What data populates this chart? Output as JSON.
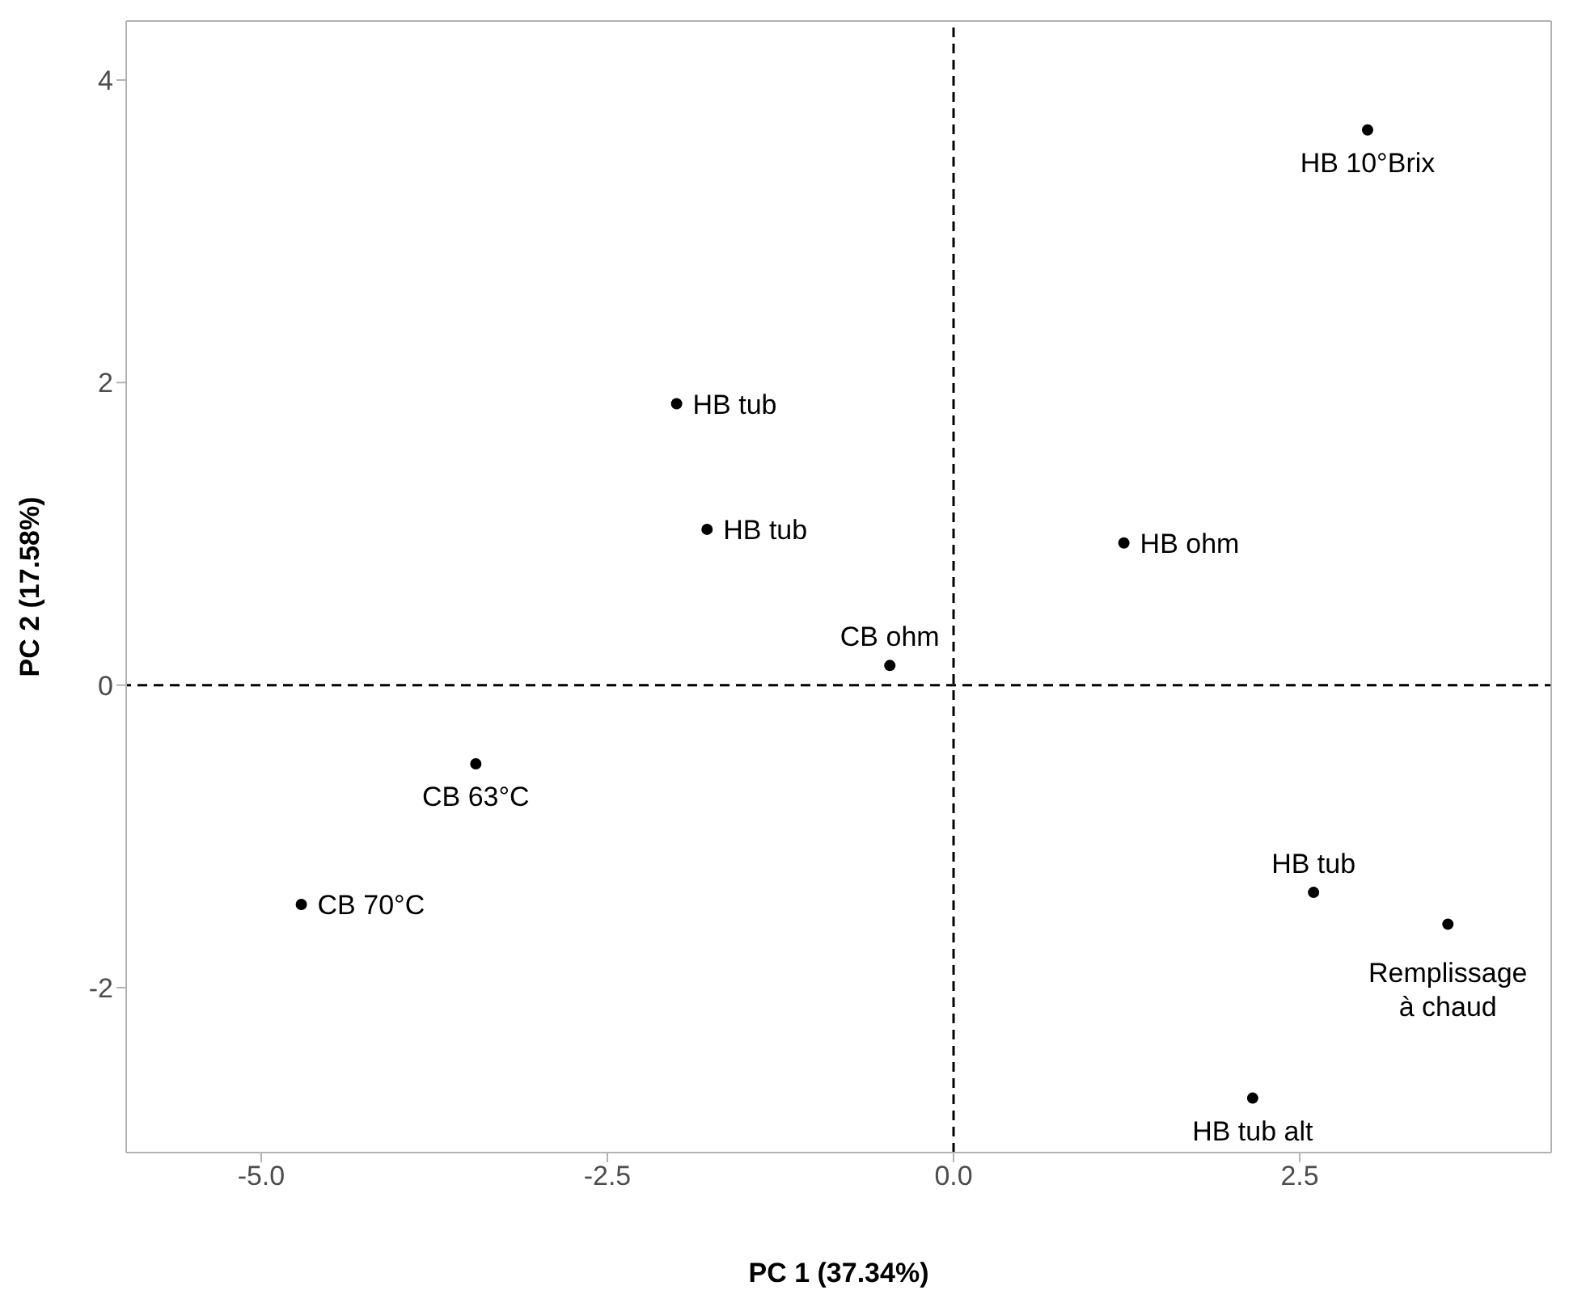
{
  "chart_data": {
    "type": "scatter",
    "xlabel": "PC 1 (37.34%)",
    "ylabel": "PC 2 (17.58%)",
    "x": [
      2.99,
      -2.0,
      -1.78,
      1.23,
      -0.46,
      -3.45,
      -4.71,
      2.6,
      3.57,
      2.16
    ],
    "values": [
      3.67,
      1.86,
      1.03,
      0.94,
      0.13,
      -0.52,
      -1.45,
      -1.37,
      -1.58,
      -2.73
    ],
    "color": "#000000",
    "marker": "circle",
    "grid": false,
    "legend": false,
    "xlim": [
      -5.975,
      4.316
    ],
    "xticks": [
      {
        "value": -5,
        "label": "-5.0"
      },
      {
        "value": -2.5,
        "label": "-2.5"
      },
      {
        "value": 0,
        "label": "0.0"
      },
      {
        "value": 2.5,
        "label": "2.5"
      }
    ],
    "ylim": [
      -3.09,
      4.39
    ],
    "yticks": [
      -2,
      0,
      2,
      4
    ],
    "ref_lines": [
      {
        "axis": "x",
        "value": 0,
        "line_style": "dashed",
        "color": "#000000"
      },
      {
        "axis": "y",
        "value": 0,
        "line_style": "dashed",
        "color": "#000000"
      }
    ],
    "annotations": [
      {
        "text": "HB 10°Brix",
        "x": 2.99,
        "y": 3.67
      },
      {
        "text": "HB tub",
        "x": -2.0,
        "y": 1.86
      },
      {
        "text": "HB tub",
        "x": -1.78,
        "y": 1.03
      },
      {
        "text": "HB ohm",
        "x": 1.23,
        "y": 0.94
      },
      {
        "text": "CB ohm",
        "x": -0.46,
        "y": 0.13
      },
      {
        "text": "CB 63°C",
        "x": -3.45,
        "y": -0.52
      },
      {
        "text": "CB 70°C",
        "x": -4.71,
        "y": -1.45
      },
      {
        "text": "HB tub",
        "x": 2.6,
        "y": -1.37
      },
      {
        "text": "Remplissage à chaud",
        "x": 3.57,
        "y": -1.58
      },
      {
        "text": "HB tub alt",
        "x": 2.16,
        "y": -2.73
      }
    ]
  }
}
